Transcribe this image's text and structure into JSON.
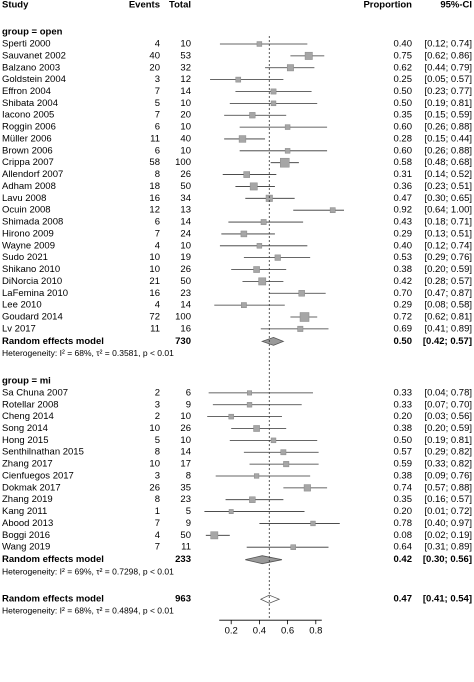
{
  "chart_data": {
    "type": "forest",
    "columns": {
      "study": "Study",
      "events": "Events",
      "total": "Total",
      "proportion": "Proportion",
      "ci": "95%-CI"
    },
    "marker_color": "#a6a6a6",
    "pooled_color": "#999999",
    "xlim": [
      0,
      1
    ],
    "xticks": [
      0.2,
      0.4,
      0.6,
      0.8
    ],
    "groups": [
      {
        "label": "group = open",
        "studies": [
          {
            "name": "Sperti 2000",
            "events": 4,
            "total": 10,
            "value": 0.4,
            "value_label": "0.40",
            "lower": 0.12,
            "upper": 0.74,
            "ci_label": "[0.12; 0.74]"
          },
          {
            "name": "Sauvanet 2002",
            "events": 40,
            "total": 53,
            "value": 0.75,
            "value_label": "0.75",
            "lower": 0.62,
            "upper": 0.86,
            "ci_label": "[0.62; 0.86]"
          },
          {
            "name": "Balzano 2003",
            "events": 20,
            "total": 32,
            "value": 0.62,
            "value_label": "0.62",
            "lower": 0.44,
            "upper": 0.79,
            "ci_label": "[0.44; 0.79]"
          },
          {
            "name": "Goldstein 2004",
            "events": 3,
            "total": 12,
            "value": 0.25,
            "value_label": "0.25",
            "lower": 0.05,
            "upper": 0.57,
            "ci_label": "[0.05; 0.57]"
          },
          {
            "name": "Effron 2004",
            "events": 7,
            "total": 14,
            "value": 0.5,
            "value_label": "0.50",
            "lower": 0.23,
            "upper": 0.77,
            "ci_label": "[0.23; 0.77]"
          },
          {
            "name": "Shibata 2004",
            "events": 5,
            "total": 10,
            "value": 0.5,
            "value_label": "0.50",
            "lower": 0.19,
            "upper": 0.81,
            "ci_label": "[0.19; 0.81]"
          },
          {
            "name": "Iacono 2005",
            "events": 7,
            "total": 20,
            "value": 0.35,
            "value_label": "0.35",
            "lower": 0.15,
            "upper": 0.59,
            "ci_label": "[0.15; 0.59]"
          },
          {
            "name": "Roggin 2006",
            "events": 6,
            "total": 10,
            "value": 0.6,
            "value_label": "0.60",
            "lower": 0.26,
            "upper": 0.88,
            "ci_label": "[0.26; 0.88]"
          },
          {
            "name": "Müller 2006",
            "events": 11,
            "total": 40,
            "value": 0.28,
            "value_label": "0.28",
            "lower": 0.15,
            "upper": 0.44,
            "ci_label": "[0.15; 0.44]"
          },
          {
            "name": "Brown 2006",
            "events": 6,
            "total": 10,
            "value": 0.6,
            "value_label": "0.60",
            "lower": 0.26,
            "upper": 0.88,
            "ci_label": "[0.26; 0.88]"
          },
          {
            "name": "Crippa 2007",
            "events": 58,
            "total": 100,
            "value": 0.58,
            "value_label": "0.58",
            "lower": 0.48,
            "upper": 0.68,
            "ci_label": "[0.48; 0.68]"
          },
          {
            "name": "Allendorf 2007",
            "events": 8,
            "total": 26,
            "value": 0.31,
            "value_label": "0.31",
            "lower": 0.14,
            "upper": 0.52,
            "ci_label": "[0.14; 0.52]"
          },
          {
            "name": "Adham 2008",
            "events": 18,
            "total": 50,
            "value": 0.36,
            "value_label": "0.36",
            "lower": 0.23,
            "upper": 0.51,
            "ci_label": "[0.23; 0.51]"
          },
          {
            "name": "Lavu 2008",
            "events": 16,
            "total": 34,
            "value": 0.47,
            "value_label": "0.47",
            "lower": 0.3,
            "upper": 0.65,
            "ci_label": "[0.30; 0.65]"
          },
          {
            "name": "Ocuin 2008",
            "events": 12,
            "total": 13,
            "value": 0.92,
            "value_label": "0.92",
            "lower": 0.64,
            "upper": 1,
            "ci_label": "[0.64; 1.00]"
          },
          {
            "name": "Shimada 2008",
            "events": 6,
            "total": 14,
            "value": 0.43,
            "value_label": "0.43",
            "lower": 0.18,
            "upper": 0.71,
            "ci_label": "[0.18; 0.71]"
          },
          {
            "name": "Hirono 2009",
            "events": 7,
            "total": 24,
            "value": 0.29,
            "value_label": "0.29",
            "lower": 0.13,
            "upper": 0.51,
            "ci_label": "[0.13; 0.51]"
          },
          {
            "name": "Wayne 2009",
            "events": 4,
            "total": 10,
            "value": 0.4,
            "value_label": "0.40",
            "lower": 0.12,
            "upper": 0.74,
            "ci_label": "[0.12; 0.74]"
          },
          {
            "name": "Sudo 2021",
            "events": 10,
            "total": 19,
            "value": 0.53,
            "value_label": "0.53",
            "lower": 0.29,
            "upper": 0.76,
            "ci_label": "[0.29; 0.76]"
          },
          {
            "name": "Shikano 2010",
            "events": 10,
            "total": 26,
            "value": 0.38,
            "value_label": "0.38",
            "lower": 0.2,
            "upper": 0.59,
            "ci_label": "[0.20; 0.59]"
          },
          {
            "name": "DiNorcia 2010",
            "events": 21,
            "total": 50,
            "value": 0.42,
            "value_label": "0.42",
            "lower": 0.28,
            "upper": 0.57,
            "ci_label": "[0.28; 0.57]"
          },
          {
            "name": "LaFemina 2010",
            "events": 16,
            "total": 23,
            "value": 0.7,
            "value_label": "0.70",
            "lower": 0.47,
            "upper": 0.87,
            "ci_label": "[0.47; 0.87]"
          },
          {
            "name": "Lee 2010",
            "events": 4,
            "total": 14,
            "value": 0.29,
            "value_label": "0.29",
            "lower": 0.08,
            "upper": 0.58,
            "ci_label": "[0.08; 0.58]"
          },
          {
            "name": "Goudard 2014",
            "events": 72,
            "total": 100,
            "value": 0.72,
            "value_label": "0.72",
            "lower": 0.62,
            "upper": 0.81,
            "ci_label": "[0.62; 0.81]"
          },
          {
            "name": "Lv 2017",
            "events": 11,
            "total": 16,
            "value": 0.69,
            "value_label": "0.69",
            "lower": 0.41,
            "upper": 0.89,
            "ci_label": "[0.41; 0.89]"
          }
        ],
        "pooled": {
          "name": "Random effects model",
          "total": 730,
          "value": 0.5,
          "value_label": "0.50",
          "lower": 0.42,
          "upper": 0.57,
          "ci_label": "[0.42; 0.57]"
        },
        "heterogeneity": "Heterogeneity: I² = 68%, τ² = 0.3581, p < 0.01"
      },
      {
        "label": "group = mi",
        "studies": [
          {
            "name": "Sa Chuna 2007",
            "events": 2,
            "total": 6,
            "value": 0.33,
            "value_label": "0.33",
            "lower": 0.04,
            "upper": 0.78,
            "ci_label": "[0.04; 0.78]"
          },
          {
            "name": "Rotellar 2008",
            "events": 3,
            "total": 9,
            "value": 0.33,
            "value_label": "0.33",
            "lower": 0.07,
            "upper": 0.7,
            "ci_label": "[0.07; 0.70]"
          },
          {
            "name": "Cheng 2014",
            "events": 2,
            "total": 10,
            "value": 0.2,
            "value_label": "0.20",
            "lower": 0.03,
            "upper": 0.56,
            "ci_label": "[0.03; 0.56]"
          },
          {
            "name": "Song 2014",
            "events": 10,
            "total": 26,
            "value": 0.38,
            "value_label": "0.38",
            "lower": 0.2,
            "upper": 0.59,
            "ci_label": "[0.20; 0.59]"
          },
          {
            "name": "Hong 2015",
            "events": 5,
            "total": 10,
            "value": 0.5,
            "value_label": "0.50",
            "lower": 0.19,
            "upper": 0.81,
            "ci_label": "[0.19; 0.81]"
          },
          {
            "name": "Senthilnathan 2015",
            "events": 8,
            "total": 14,
            "value": 0.57,
            "value_label": "0.57",
            "lower": 0.29,
            "upper": 0.82,
            "ci_label": "[0.29; 0.82]"
          },
          {
            "name": "Zhang 2017",
            "events": 10,
            "total": 17,
            "value": 0.59,
            "value_label": "0.59",
            "lower": 0.33,
            "upper": 0.82,
            "ci_label": "[0.33; 0.82]"
          },
          {
            "name": "Cienfuegos 2017",
            "events": 3,
            "total": 8,
            "value": 0.38,
            "value_label": "0.38",
            "lower": 0.09,
            "upper": 0.76,
            "ci_label": "[0.09; 0.76]"
          },
          {
            "name": "Dokmak 2017",
            "events": 26,
            "total": 35,
            "value": 0.74,
            "value_label": "0.74",
            "lower": 0.57,
            "upper": 0.88,
            "ci_label": "[0.57; 0.88]"
          },
          {
            "name": "Zhang 2019",
            "events": 8,
            "total": 23,
            "value": 0.35,
            "value_label": "0.35",
            "lower": 0.16,
            "upper": 0.57,
            "ci_label": "[0.16; 0.57]"
          },
          {
            "name": "Kang 2011",
            "events": 1,
            "total": 5,
            "value": 0.2,
            "value_label": "0.20",
            "lower": 0.01,
            "upper": 0.72,
            "ci_label": "[0.01; 0.72]"
          },
          {
            "name": "Abood 2013",
            "events": 7,
            "total": 9,
            "value": 0.78,
            "value_label": "0.78",
            "lower": 0.4,
            "upper": 0.97,
            "ci_label": "[0.40; 0.97]"
          },
          {
            "name": "Boggi 2016",
            "events": 4,
            "total": 50,
            "value": 0.08,
            "value_label": "0.08",
            "lower": 0.02,
            "upper": 0.19,
            "ci_label": "[0.02; 0.19]"
          },
          {
            "name": "Wang 2019",
            "events": 7,
            "total": 11,
            "value": 0.64,
            "value_label": "0.64",
            "lower": 0.31,
            "upper": 0.89,
            "ci_label": "[0.31; 0.89]"
          }
        ],
        "pooled": {
          "name": "Random effects model",
          "total": 233,
          "value": 0.42,
          "value_label": "0.42",
          "lower": 0.3,
          "upper": 0.56,
          "ci_label": "[0.30; 0.56]"
        },
        "heterogeneity": "Heterogeneity: I² = 69%, τ² = 0.7298, p < 0.01"
      }
    ],
    "overall": {
      "name": "Random effects model",
      "total": 963,
      "value": 0.47,
      "value_label": "0.47",
      "lower": 0.41,
      "upper": 0.54,
      "ci_label": "[0.41; 0.54]",
      "heterogeneity": "Heterogeneity: I² = 68%, τ² = 0.4894, p < 0.01"
    }
  }
}
